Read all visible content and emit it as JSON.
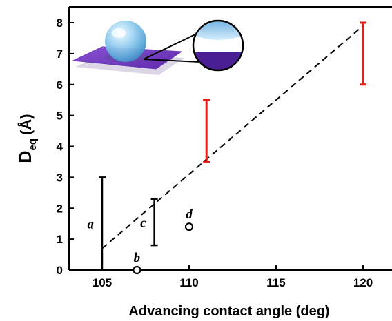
{
  "chart_data": {
    "type": "scatter",
    "xlabel": "Advancing contact angle (deg)",
    "ylabel": {
      "main": "D",
      "sub": "eq",
      "unit": "(Å)"
    },
    "xlim": [
      102.5,
      122
    ],
    "ylim": [
      0,
      8.5
    ],
    "x_ticks": [
      105,
      110,
      115,
      120
    ],
    "y_ticks": [
      0,
      1,
      2,
      3,
      4,
      5,
      6,
      7,
      8
    ],
    "x_tick_labels": [
      "105",
      "110",
      "115",
      "120"
    ],
    "y_tick_labels": [
      "0",
      "1",
      "2",
      "3",
      "4",
      "5",
      "6",
      "7",
      "8"
    ],
    "grid": false,
    "range_bars": [
      {
        "label": "a",
        "x": 105,
        "low": 0,
        "high": 3,
        "color": "#000000"
      },
      {
        "label": "c",
        "x": 108,
        "low": 0.8,
        "high": 2.3,
        "color": "#000000"
      },
      {
        "label": "",
        "x": 111,
        "low": 3.5,
        "high": 5.5,
        "color": "#e0201b"
      },
      {
        "label": "",
        "x": 120,
        "low": 6,
        "high": 8,
        "color": "#e0201b"
      }
    ],
    "points": [
      {
        "label": "b",
        "x": 107,
        "y": 0
      },
      {
        "label": "d",
        "x": 110,
        "y": 1.4
      }
    ],
    "fit_line": {
      "style": "dashed",
      "x": [
        105,
        120
      ],
      "y": [
        0.7,
        7.9
      ],
      "color": "#000000"
    },
    "inset": "water droplet on a purple substrate with magnified contact view",
    "colors": {
      "substrate": "#7b3fc4",
      "droplet": "#8fc8ee",
      "experimental_bar": "#e0201b"
    }
  }
}
